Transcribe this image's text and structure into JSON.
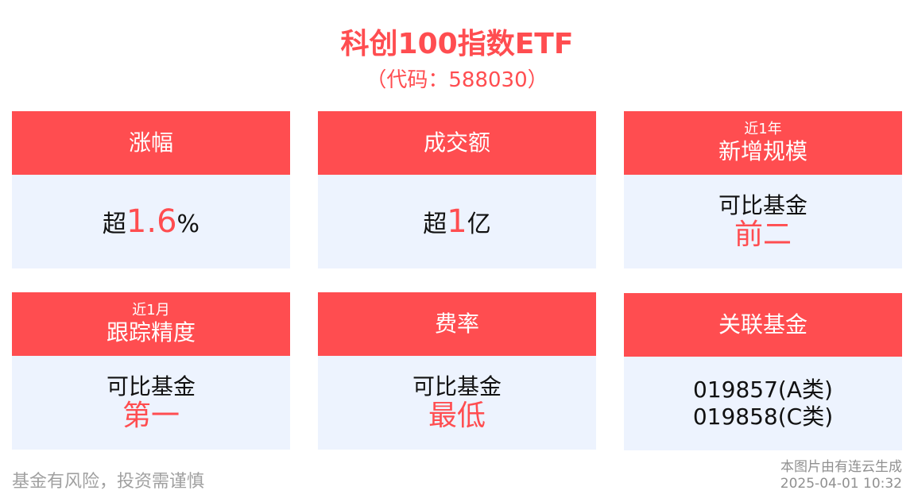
{
  "title": "科创100指数ETF",
  "subtitle": "（代码：588030）",
  "colors": {
    "accent": "#ff4d50",
    "card_body": "#edf3fe"
  },
  "cards": [
    {
      "header": "涨幅",
      "prefix": "超",
      "value": "1.6",
      "suffix": "%"
    },
    {
      "header": "成交额",
      "prefix": "超",
      "value": "1",
      "suffix": "亿"
    },
    {
      "header_small": "近1年",
      "header": "新增规模",
      "line": "可比基金",
      "highlight": "前二"
    },
    {
      "header_small": "近1月",
      "header": "跟踪精度",
      "line": "可比基金",
      "highlight": "第一"
    },
    {
      "header": "费率",
      "line": "可比基金",
      "highlight": "最低"
    },
    {
      "header": "关联基金",
      "lines": [
        "019857(A类)",
        "019858(C类)"
      ]
    }
  ],
  "footer": {
    "disclaimer": "基金有风险，投资需谨慎",
    "source": "本图片由有连云生成",
    "timestamp": "2025-04-01 10:32"
  }
}
